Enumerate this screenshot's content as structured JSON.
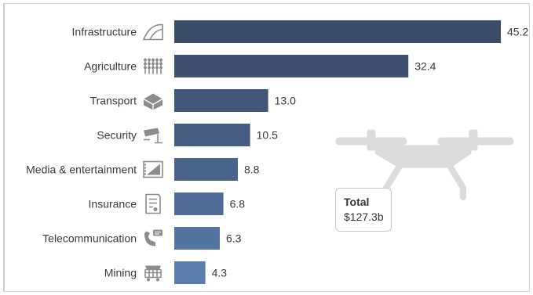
{
  "chart_data": {
    "type": "bar",
    "orientation": "horizontal",
    "categories": [
      "Infrastructure",
      "Agriculture",
      "Transport",
      "Security",
      "Media & entertainment",
      "Insurance",
      "Telecommunication",
      "Mining"
    ],
    "values": [
      45.2,
      32.4,
      13.0,
      10.5,
      8.8,
      6.8,
      6.3,
      4.3
    ],
    "value_labels": [
      "45.2",
      "32.4",
      "13.0",
      "10.5",
      "8.8",
      "6.8",
      "6.3",
      "4.3"
    ],
    "icons": [
      "road-icon",
      "wheat-icon",
      "box-icon",
      "camera-icon",
      "film-icon",
      "document-icon",
      "phone-icon",
      "cart-icon"
    ],
    "bar_colors": [
      "#3c4b68",
      "#3f5070",
      "#425679",
      "#465d82",
      "#4a648c",
      "#4f6c96",
      "#5474a0",
      "#5a7dab"
    ],
    "xlim": [
      0,
      45.2
    ],
    "grid": false,
    "legend": "none"
  },
  "total": {
    "title": "Total",
    "value": "$127.3b"
  },
  "colors": {
    "icon": "#8c8c8c",
    "drone": "#dcdcdc",
    "text": "#3a3a3a"
  }
}
